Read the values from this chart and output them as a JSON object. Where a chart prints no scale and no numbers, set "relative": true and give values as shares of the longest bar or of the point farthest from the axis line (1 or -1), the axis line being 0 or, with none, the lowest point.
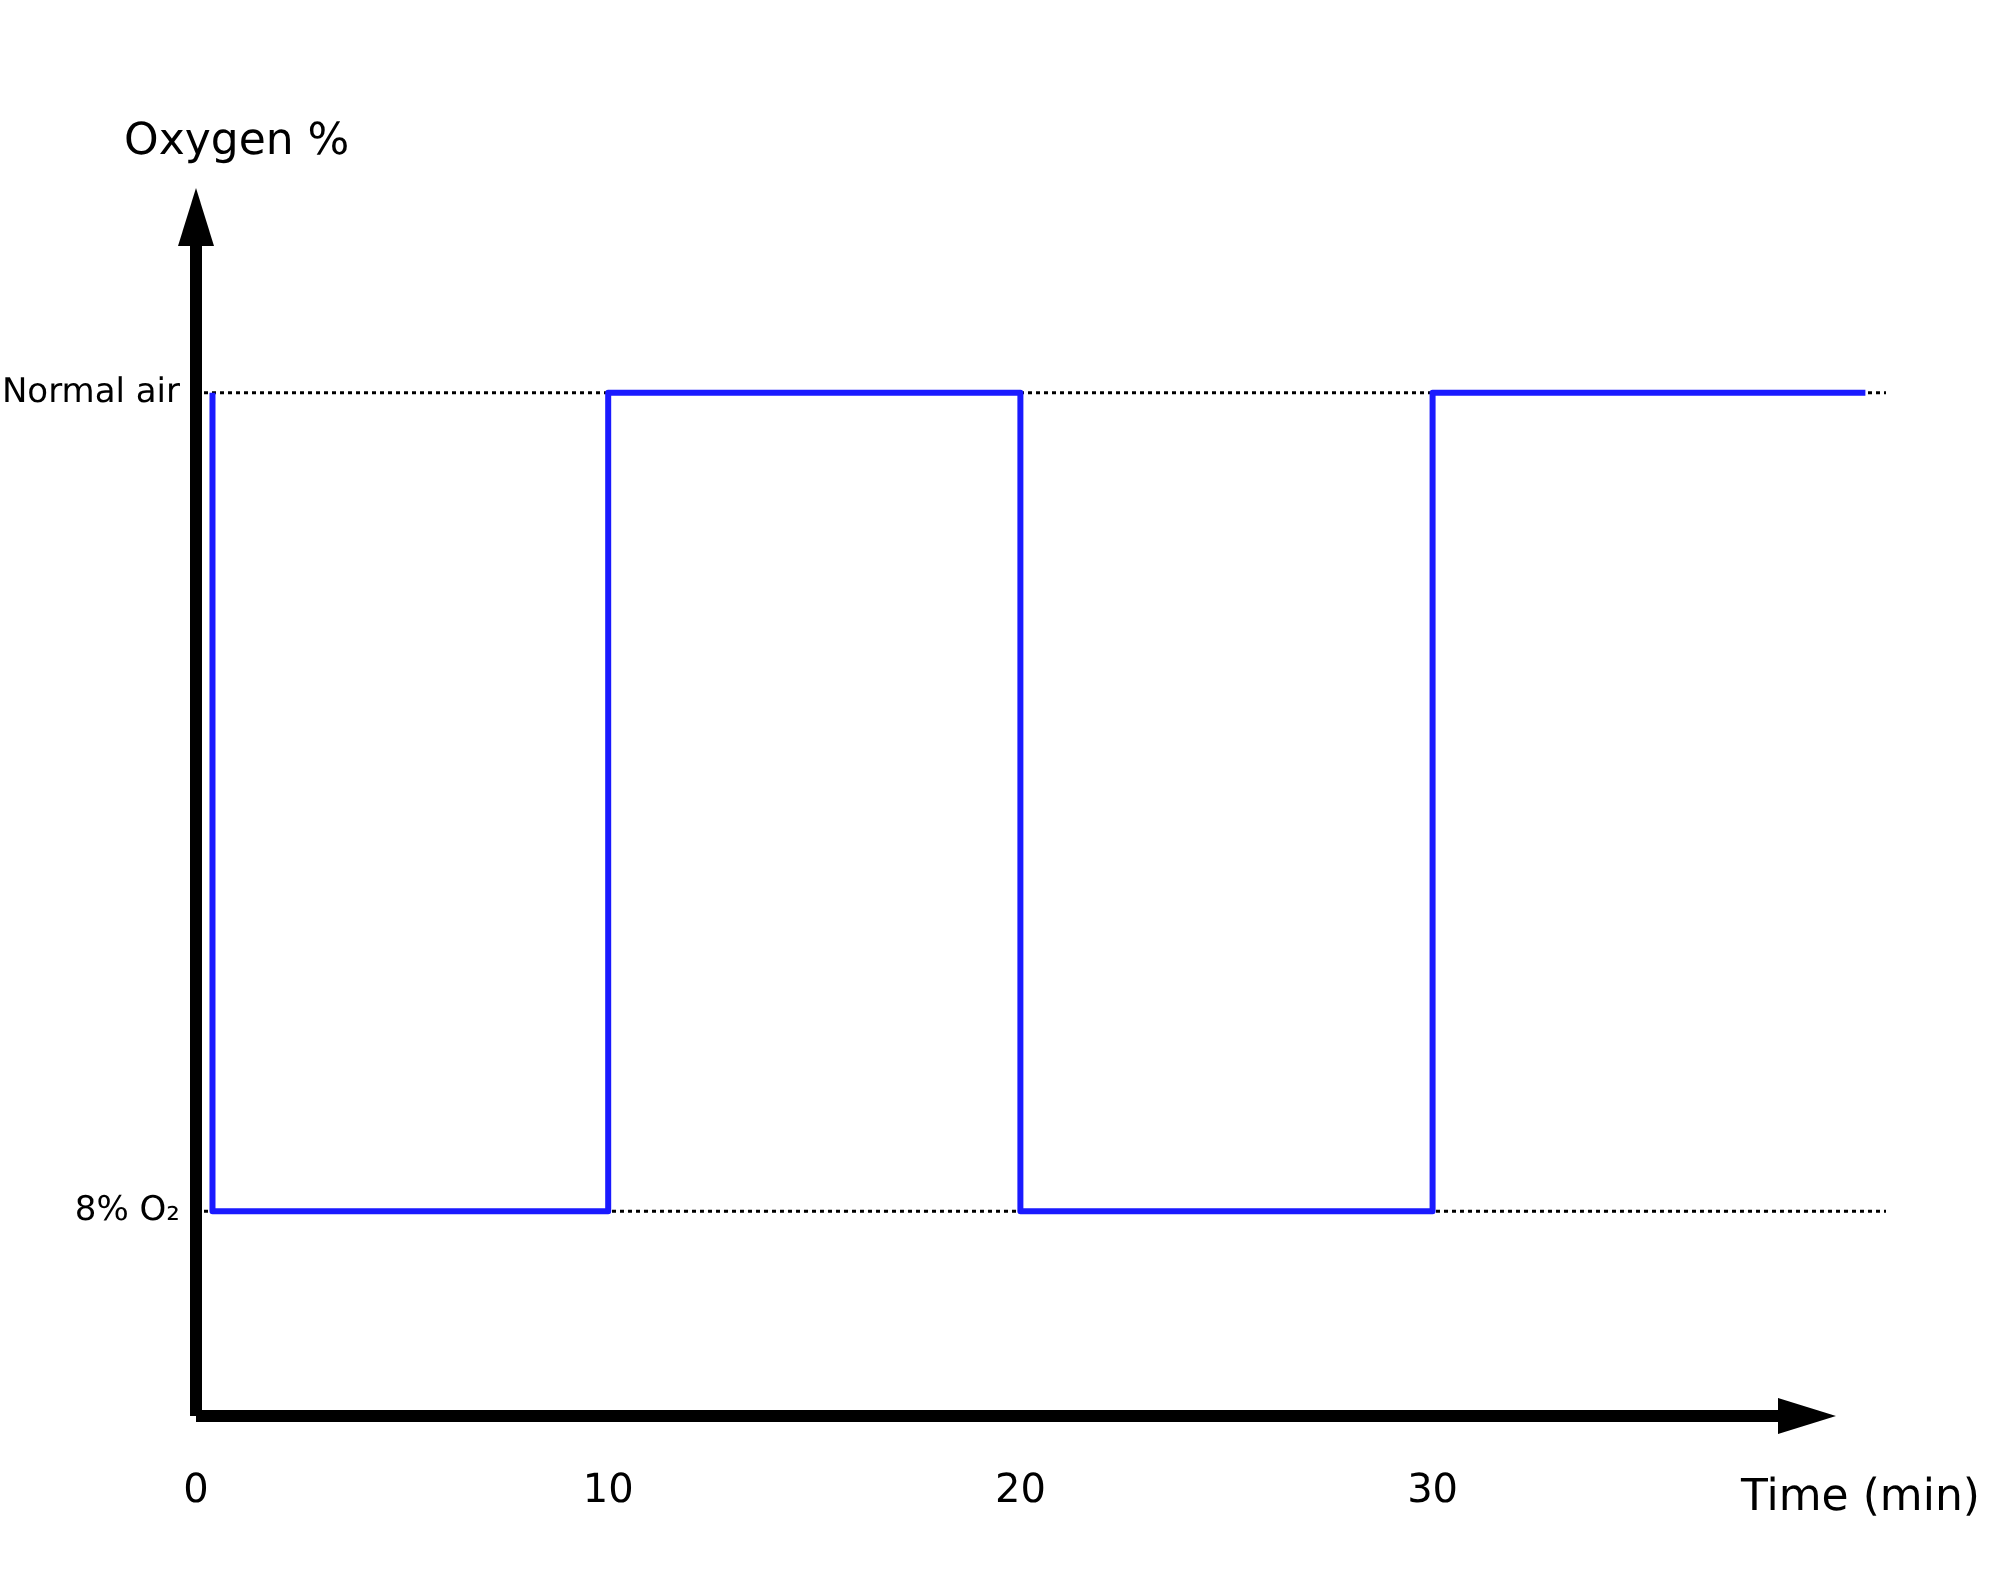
{
  "chart_data": {
    "type": "step",
    "relative": true,
    "xlabel": "Time (min)",
    "annotations": [
      "Oxygen %"
    ],
    "x": [
      0.4,
      0.4,
      10,
      20,
      30,
      40.5
    ],
    "series": [
      {
        "color": "#1a1aff",
        "values": [
          1,
          0.2,
          1,
          0.2,
          1,
          1
        ]
      }
    ],
    "xlim": [
      0,
      41
    ],
    "xticks": [
      0,
      10,
      20,
      30
    ],
    "ref_lines": [
      {
        "axis": "y",
        "value": 1,
        "label": "Normal air",
        "color": "#000000",
        "line_style": "dotted"
      },
      {
        "axis": "y",
        "value": 0.2,
        "label": "8% O₂",
        "color": "#000000",
        "line_style": "dotted"
      }
    ],
    "legend": false,
    "marker": "none",
    "line_style": "solid"
  }
}
